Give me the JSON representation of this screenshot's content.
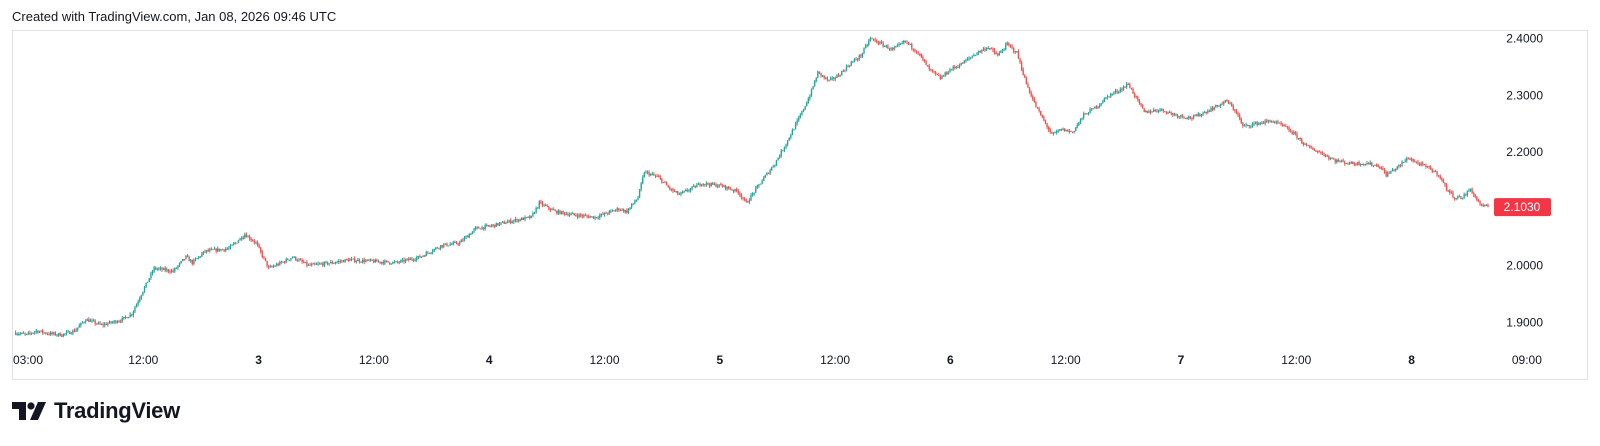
{
  "header": {
    "created_text": "Created with TradingView.com, Jan 08, 2026 09:46 UTC"
  },
  "brand": {
    "name": "TradingView"
  },
  "colors": {
    "up": "#26a69a",
    "down": "#ef5350",
    "price_badge": "#f23645",
    "grid_border": "#e0e3eb",
    "text": "#131722"
  },
  "chart_data": {
    "type": "candlestick",
    "x_tick_labels": [
      "03:00",
      "12:00",
      "3",
      "12:00",
      "4",
      "12:00",
      "5",
      "12:00",
      "6",
      "12:00",
      "7",
      "12:00",
      "8",
      "09:00"
    ],
    "bold_ticks": [
      "3",
      "4",
      "5",
      "6",
      "7",
      "8"
    ],
    "y_tick_labels": [
      "2.4000",
      "2.3000",
      "2.2000",
      "2.1000",
      "2.0000",
      "1.9000"
    ],
    "y_ticks": [
      2.4,
      2.3,
      2.2,
      2.1,
      2.0,
      1.9
    ],
    "ylim": [
      1.86,
      2.415
    ],
    "last_price_label": "2.1030",
    "last_price": 2.103,
    "close_path": [
      [
        0,
        1.882
      ],
      [
        8,
        1.878
      ],
      [
        14,
        1.885
      ],
      [
        22,
        1.88
      ],
      [
        30,
        1.878
      ],
      [
        38,
        1.885
      ],
      [
        45,
        1.905
      ],
      [
        55,
        1.895
      ],
      [
        68,
        1.905
      ],
      [
        74,
        1.915
      ],
      [
        80,
        1.95
      ],
      [
        88,
        1.995
      ],
      [
        100,
        1.99
      ],
      [
        108,
        2.015
      ],
      [
        112,
        2.005
      ],
      [
        120,
        2.025
      ],
      [
        135,
        2.03
      ],
      [
        145,
        2.055
      ],
      [
        152,
        2.04
      ],
      [
        160,
        1.995
      ],
      [
        168,
        2.005
      ],
      [
        175,
        2.015
      ],
      [
        185,
        2.0
      ],
      [
        200,
        2.005
      ],
      [
        210,
        2.01
      ],
      [
        240,
        2.005
      ],
      [
        255,
        2.015
      ],
      [
        268,
        2.035
      ],
      [
        280,
        2.04
      ],
      [
        290,
        2.065
      ],
      [
        300,
        2.07
      ],
      [
        315,
        2.08
      ],
      [
        325,
        2.085
      ],
      [
        330,
        2.11
      ],
      [
        340,
        2.095
      ],
      [
        350,
        2.09
      ],
      [
        365,
        2.085
      ],
      [
        380,
        2.1
      ],
      [
        385,
        2.095
      ],
      [
        392,
        2.12
      ],
      [
        396,
        2.165
      ],
      [
        405,
        2.155
      ],
      [
        412,
        2.135
      ],
      [
        418,
        2.125
      ],
      [
        425,
        2.135
      ],
      [
        432,
        2.145
      ],
      [
        445,
        2.14
      ],
      [
        455,
        2.13
      ],
      [
        460,
        2.11
      ],
      [
        470,
        2.15
      ],
      [
        478,
        2.18
      ],
      [
        485,
        2.215
      ],
      [
        495,
        2.27
      ],
      [
        500,
        2.3
      ],
      [
        505,
        2.34
      ],
      [
        512,
        2.325
      ],
      [
        518,
        2.335
      ],
      [
        525,
        2.355
      ],
      [
        532,
        2.37
      ],
      [
        538,
        2.4
      ],
      [
        545,
        2.39
      ],
      [
        552,
        2.38
      ],
      [
        560,
        2.395
      ],
      [
        568,
        2.375
      ],
      [
        575,
        2.345
      ],
      [
        582,
        2.33
      ],
      [
        588,
        2.345
      ],
      [
        595,
        2.355
      ],
      [
        605,
        2.375
      ],
      [
        612,
        2.385
      ],
      [
        618,
        2.37
      ],
      [
        624,
        2.39
      ],
      [
        630,
        2.375
      ],
      [
        636,
        2.32
      ],
      [
        642,
        2.28
      ],
      [
        648,
        2.25
      ],
      [
        652,
        2.23
      ],
      [
        658,
        2.24
      ],
      [
        665,
        2.235
      ],
      [
        672,
        2.265
      ],
      [
        680,
        2.28
      ],
      [
        688,
        2.3
      ],
      [
        695,
        2.31
      ],
      [
        700,
        2.32
      ],
      [
        705,
        2.295
      ],
      [
        710,
        2.27
      ],
      [
        720,
        2.275
      ],
      [
        730,
        2.265
      ],
      [
        740,
        2.26
      ],
      [
        748,
        2.27
      ],
      [
        755,
        2.28
      ],
      [
        762,
        2.29
      ],
      [
        768,
        2.27
      ],
      [
        772,
        2.245
      ],
      [
        780,
        2.25
      ],
      [
        790,
        2.255
      ],
      [
        798,
        2.245
      ],
      [
        805,
        2.23
      ],
      [
        812,
        2.21
      ],
      [
        820,
        2.2
      ],
      [
        830,
        2.185
      ],
      [
        840,
        2.18
      ],
      [
        850,
        2.18
      ],
      [
        858,
        2.175
      ],
      [
        862,
        2.16
      ],
      [
        870,
        2.175
      ],
      [
        876,
        2.19
      ],
      [
        882,
        2.18
      ],
      [
        890,
        2.17
      ],
      [
        895,
        2.16
      ],
      [
        900,
        2.135
      ],
      [
        905,
        2.12
      ],
      [
        910,
        2.12
      ],
      [
        915,
        2.135
      ],
      [
        918,
        2.12
      ],
      [
        922,
        2.105
      ],
      [
        926,
        2.103
      ]
    ]
  }
}
